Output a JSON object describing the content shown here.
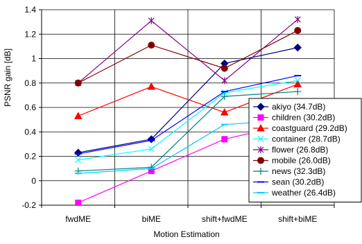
{
  "chart_data": {
    "type": "line",
    "title": "",
    "xlabel": "Motion Estimation",
    "ylabel": "PSNR gain [dB]",
    "categories": [
      "fwdME",
      "biME",
      "shift+fwdME",
      "shift+biME"
    ],
    "ylim": [
      -0.2,
      1.4
    ],
    "yticks": [
      "-0.2",
      "0",
      "0.2",
      "0.4",
      "0.6",
      "0.8",
      "1",
      "1.2",
      "1.4"
    ],
    "grid": "horizontal",
    "legend_position": "right",
    "series": [
      {
        "name": "akiyo (34.7dB)",
        "values": [
          0.23,
          0.34,
          0.96,
          1.09
        ],
        "color": "#000080",
        "marker": "diamond"
      },
      {
        "name": "children (30.2dB)",
        "values": [
          -0.18,
          0.08,
          0.34,
          0.48
        ],
        "color": "#ff00ff",
        "marker": "square"
      },
      {
        "name": "coastguard (29.2dB)",
        "values": [
          0.53,
          0.77,
          0.56,
          0.79
        ],
        "color": "#ff0000",
        "marker": "triangle"
      },
      {
        "name": "container (28.7dB)",
        "values": [
          0.17,
          0.26,
          0.72,
          0.82
        ],
        "color": "#00ffff",
        "marker": "x"
      },
      {
        "name": "flower (26.8dB)",
        "values": [
          0.8,
          1.31,
          0.82,
          1.32
        ],
        "color": "#800080",
        "marker": "star"
      },
      {
        "name": "mobile (26.0dB)",
        "values": [
          0.8,
          1.11,
          0.92,
          1.23
        ],
        "color": "#800000",
        "marker": "circle"
      },
      {
        "name": "news (32.3dB)",
        "values": [
          0.08,
          0.11,
          0.69,
          0.73
        ],
        "color": "#008080",
        "marker": "plus"
      },
      {
        "name": "sean (30.2dB)",
        "values": [
          0.22,
          0.33,
          0.73,
          0.86
        ],
        "color": "#0000ff",
        "marker": "dash"
      },
      {
        "name": "weather (26.4dB)",
        "values": [
          0.06,
          0.1,
          0.46,
          0.5
        ],
        "color": "#00ccff",
        "marker": "dash"
      }
    ]
  }
}
